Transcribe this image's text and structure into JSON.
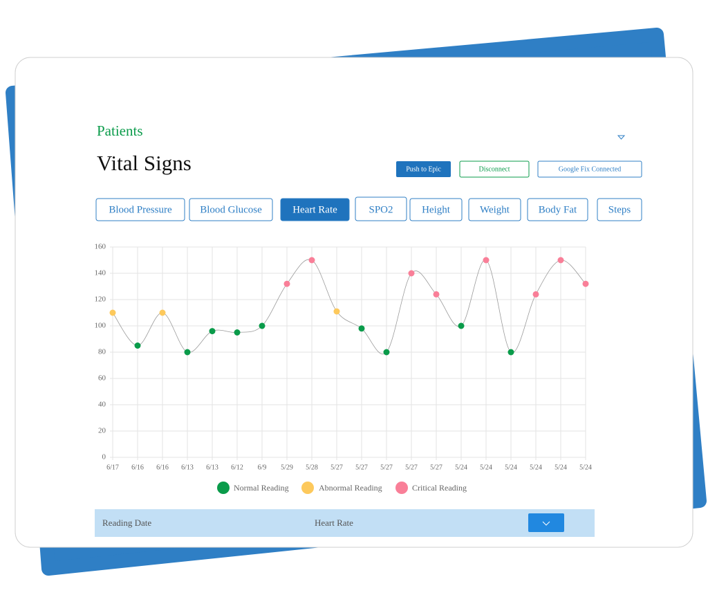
{
  "header": {
    "breadcrumb": "Patients",
    "title": "Vital Signs"
  },
  "actions": [
    "Push to Epic",
    "Disconnect",
    "Google Fix Connected"
  ],
  "tabs": [
    "Blood Pressure",
    "Blood Glucose",
    "Heart Rate",
    "SPO2",
    "Height",
    "Weight",
    "Body Fat",
    "Steps"
  ],
  "active_tab": "Heart Rate",
  "chart_data": {
    "type": "line",
    "categories": [
      "6/17",
      "6/16",
      "6/16",
      "6/13",
      "6/13",
      "6/12",
      "6/9",
      "5/29",
      "5/28",
      "5/27",
      "5/27",
      "5/27",
      "5/27",
      "5/27",
      "5/24",
      "5/24",
      "5/24",
      "5/24",
      "5/24",
      "5/24"
    ],
    "values": [
      110,
      85,
      110,
      80,
      96,
      95,
      100,
      132,
      150,
      111,
      98,
      80,
      140,
      124,
      100,
      150,
      80,
      124,
      150,
      132
    ],
    "point_colors": [
      "#fdc95c",
      "#0a9b4a",
      "#fdc95c",
      "#0a9b4a",
      "#0a9b4a",
      "#0a9b4a",
      "#0a9b4a",
      "#f97f98",
      "#f97f98",
      "#fdc95c",
      "#0a9b4a",
      "#0a9b4a",
      "#f97f98",
      "#f97f98",
      "#0a9b4a",
      "#f97f98",
      "#0a9b4a",
      "#f97f98",
      "#f97f98",
      "#f97f98"
    ],
    "legend": [
      {
        "name": "Normal Reading",
        "color": "#0a9b4a"
      },
      {
        "name": "Abnormal Reading",
        "color": "#fdc95c"
      },
      {
        "name": "Critical Reading",
        "color": "#f97f98"
      }
    ],
    "line_color": "#9a9a9a",
    "ylim": [
      0,
      160
    ],
    "yticks": [
      0,
      20,
      40,
      60,
      80,
      100,
      120,
      140,
      160
    ],
    "grid": true
  },
  "table": {
    "columns": [
      "Reading Date",
      "Heart Rate"
    ]
  }
}
